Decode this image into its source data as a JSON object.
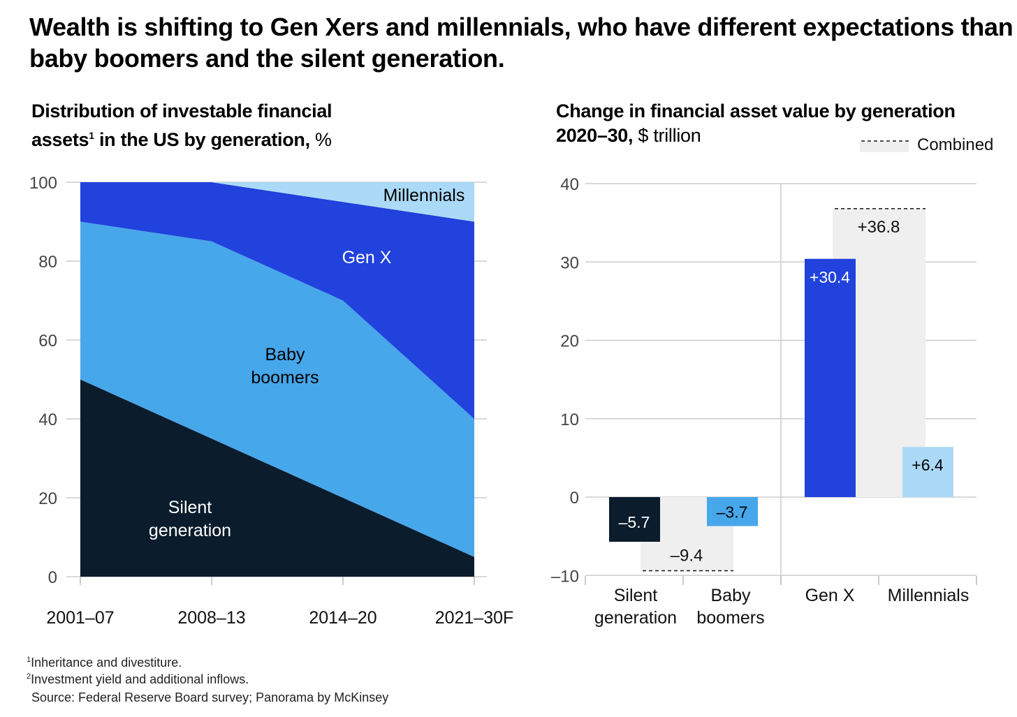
{
  "title": "Wealth is shifting to Gen Xers and millennials, who have different expectations than baby boomers and the silent generation.",
  "footnotes": [
    "Inheritance and divestiture.",
    "Investment yield and additional inflows."
  ],
  "footnote_marks": [
    "1",
    "2"
  ],
  "source": "Source: Federal Reserve Board survey; Panorama by McKinsey",
  "chart_data": [
    {
      "type": "area",
      "stacked": true,
      "title_bold_1": "Distribution of investable financial assets",
      "title_sup": "1",
      "title_bold_2": " in the US by generation,",
      "title_unit": " %",
      "categories": [
        "2001–07",
        "2008–13",
        "2014–20",
        "2021–30F"
      ],
      "ylim": [
        0,
        100
      ],
      "yticks": [
        "0",
        "20",
        "40",
        "60",
        "80",
        "100"
      ],
      "grid": true,
      "series": [
        {
          "name": "Silent generation",
          "label_lines": [
            "Silent",
            "generation"
          ],
          "values": [
            50,
            35,
            20,
            5
          ],
          "color": "#0b1c2c",
          "label_color": "#ffffff"
        },
        {
          "name": "Baby boomers",
          "label_lines": [
            "Baby",
            "boomers"
          ],
          "values": [
            40,
            50,
            50,
            35
          ],
          "color": "#47a7eb",
          "label_color": "#000000"
        },
        {
          "name": "Gen X",
          "label_lines": [
            "Gen X"
          ],
          "values": [
            10,
            15,
            25,
            50
          ],
          "color": "#2142dc",
          "label_color": "#ffffff"
        },
        {
          "name": "Millennials",
          "label_lines": [
            "Millennials"
          ],
          "values": [
            0,
            0,
            5,
            10
          ],
          "color": "#abdaf8",
          "label_color": "#000000"
        }
      ]
    },
    {
      "type": "bar",
      "title_bold": "Change in financial asset value by generation 2020–30,",
      "title_line1": "Change in financial asset value by generation",
      "title_line2_bold": "2020–30,",
      "title_unit": " $ trillion",
      "legend": {
        "label": "Combined",
        "position": "top-right"
      },
      "categories": [
        [
          "Silent",
          "generation"
        ],
        [
          "Baby",
          "boomers"
        ],
        [
          "Gen X"
        ],
        [
          "Millennials"
        ]
      ],
      "values": [
        -5.7,
        -3.7,
        30.4,
        6.4
      ],
      "labels": [
        "–5.7",
        "–3.7",
        "+30.4",
        "+6.4"
      ],
      "colors": [
        "#0b1c2c",
        "#47a7eb",
        "#2142dc",
        "#abdaf8"
      ],
      "label_colors": [
        "#ffffff",
        "#000000",
        "#ffffff",
        "#000000"
      ],
      "combined": [
        {
          "groups": [
            "Silent generation",
            "Baby boomers"
          ],
          "value": -9.4,
          "label": "–9.4"
        },
        {
          "groups": [
            "Gen X",
            "Millennials"
          ],
          "value": 36.8,
          "label": "+36.8"
        }
      ],
      "ylim": [
        -10,
        40
      ],
      "yticks": [
        "–10",
        "0",
        "10",
        "20",
        "30",
        "40"
      ],
      "grid": true
    }
  ]
}
